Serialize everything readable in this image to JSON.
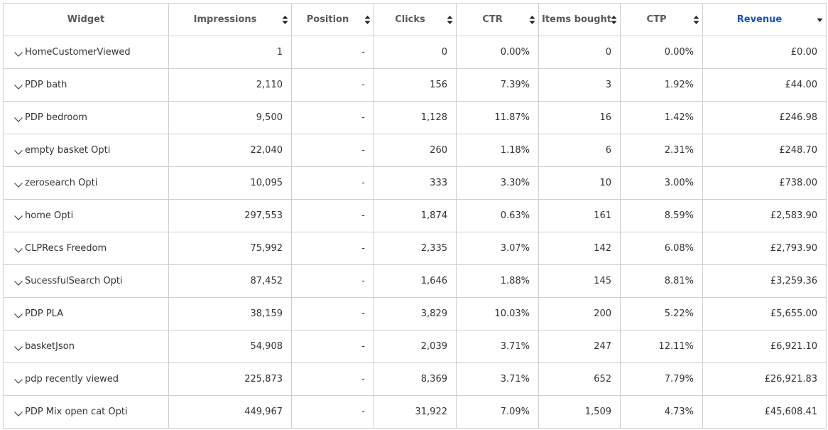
{
  "table": {
    "headers": [
      "Widget",
      "Impressions",
      "Position",
      "Clicks",
      "CTR",
      "Items bought",
      "CTP",
      "Revenue"
    ],
    "rows": [
      [
        "HomeCustomerViewed",
        "1",
        "-",
        "0",
        "0.00%",
        "0",
        "0.00%",
        "£0.00"
      ],
      [
        "PDP bath",
        "2,110",
        "-",
        "156",
        "7.39%",
        "3",
        "1.92%",
        "£44.00"
      ],
      [
        "PDP bedroom",
        "9,500",
        "-",
        "1,128",
        "11.87%",
        "16",
        "1.42%",
        "£246.98"
      ],
      [
        "empty basket Opti",
        "22,040",
        "-",
        "260",
        "1.18%",
        "6",
        "2.31%",
        "£248.70"
      ],
      [
        "zerosearch Opti",
        "10,095",
        "-",
        "333",
        "3.30%",
        "10",
        "3.00%",
        "£738.00"
      ],
      [
        "home Opti",
        "297,553",
        "-",
        "1,874",
        "0.63%",
        "161",
        "8.59%",
        "£2,583.90"
      ],
      [
        "CLPRecs Freedom",
        "75,992",
        "-",
        "2,335",
        "3.07%",
        "142",
        "6.08%",
        "£2,793.90"
      ],
      [
        "SucessfulSearch Opti",
        "87,452",
        "-",
        "1,646",
        "1.88%",
        "145",
        "8.81%",
        "£3,259.36"
      ],
      [
        "PDP PLA",
        "38,159",
        "-",
        "3,829",
        "10.03%",
        "200",
        "5.22%",
        "£5,655.00"
      ],
      [
        "basketJson",
        "54,908",
        "-",
        "2,039",
        "3.71%",
        "247",
        "12.11%",
        "£6,921.10"
      ],
      [
        "pdp recently viewed",
        "225,873",
        "-",
        "8,369",
        "3.71%",
        "652",
        "7.79%",
        "£26,921.83"
      ],
      [
        "PDP Mix open cat Opti",
        "449,967",
        "-",
        "31,922",
        "7.09%",
        "1,509",
        "4.73%",
        "£45,608.41"
      ]
    ]
  }
}
